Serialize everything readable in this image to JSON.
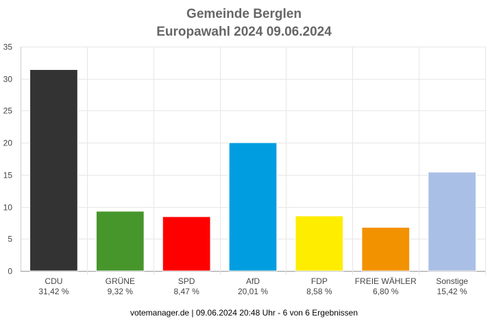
{
  "chart_data": {
    "type": "bar",
    "title": "Gemeinde Berglen",
    "subtitle": "Europawahl 2024 09.06.2024",
    "categories": [
      "CDU",
      "GRÜNE",
      "SPD",
      "AfD",
      "FDP",
      "FREIE WÄHLER",
      "Sonstige"
    ],
    "values": [
      31.42,
      9.32,
      8.47,
      20.01,
      8.58,
      6.8,
      15.42
    ],
    "value_labels": [
      "31,42 %",
      "9,32 %",
      "8,47 %",
      "20,01 %",
      "8,58 %",
      "6,80 %",
      "15,42 %"
    ],
    "colors": [
      "#333333",
      "#46962b",
      "#ff0000",
      "#009ee0",
      "#ffed00",
      "#f39200",
      "#aabfe6"
    ],
    "ylim": [
      0,
      35
    ],
    "yticks": [
      0,
      5,
      10,
      15,
      20,
      25,
      30,
      35
    ],
    "grid": true,
    "legend": "none"
  },
  "footer": "votemanager.de | 09.06.2024 20:48 Uhr - 6 von 6 Ergebnissen"
}
